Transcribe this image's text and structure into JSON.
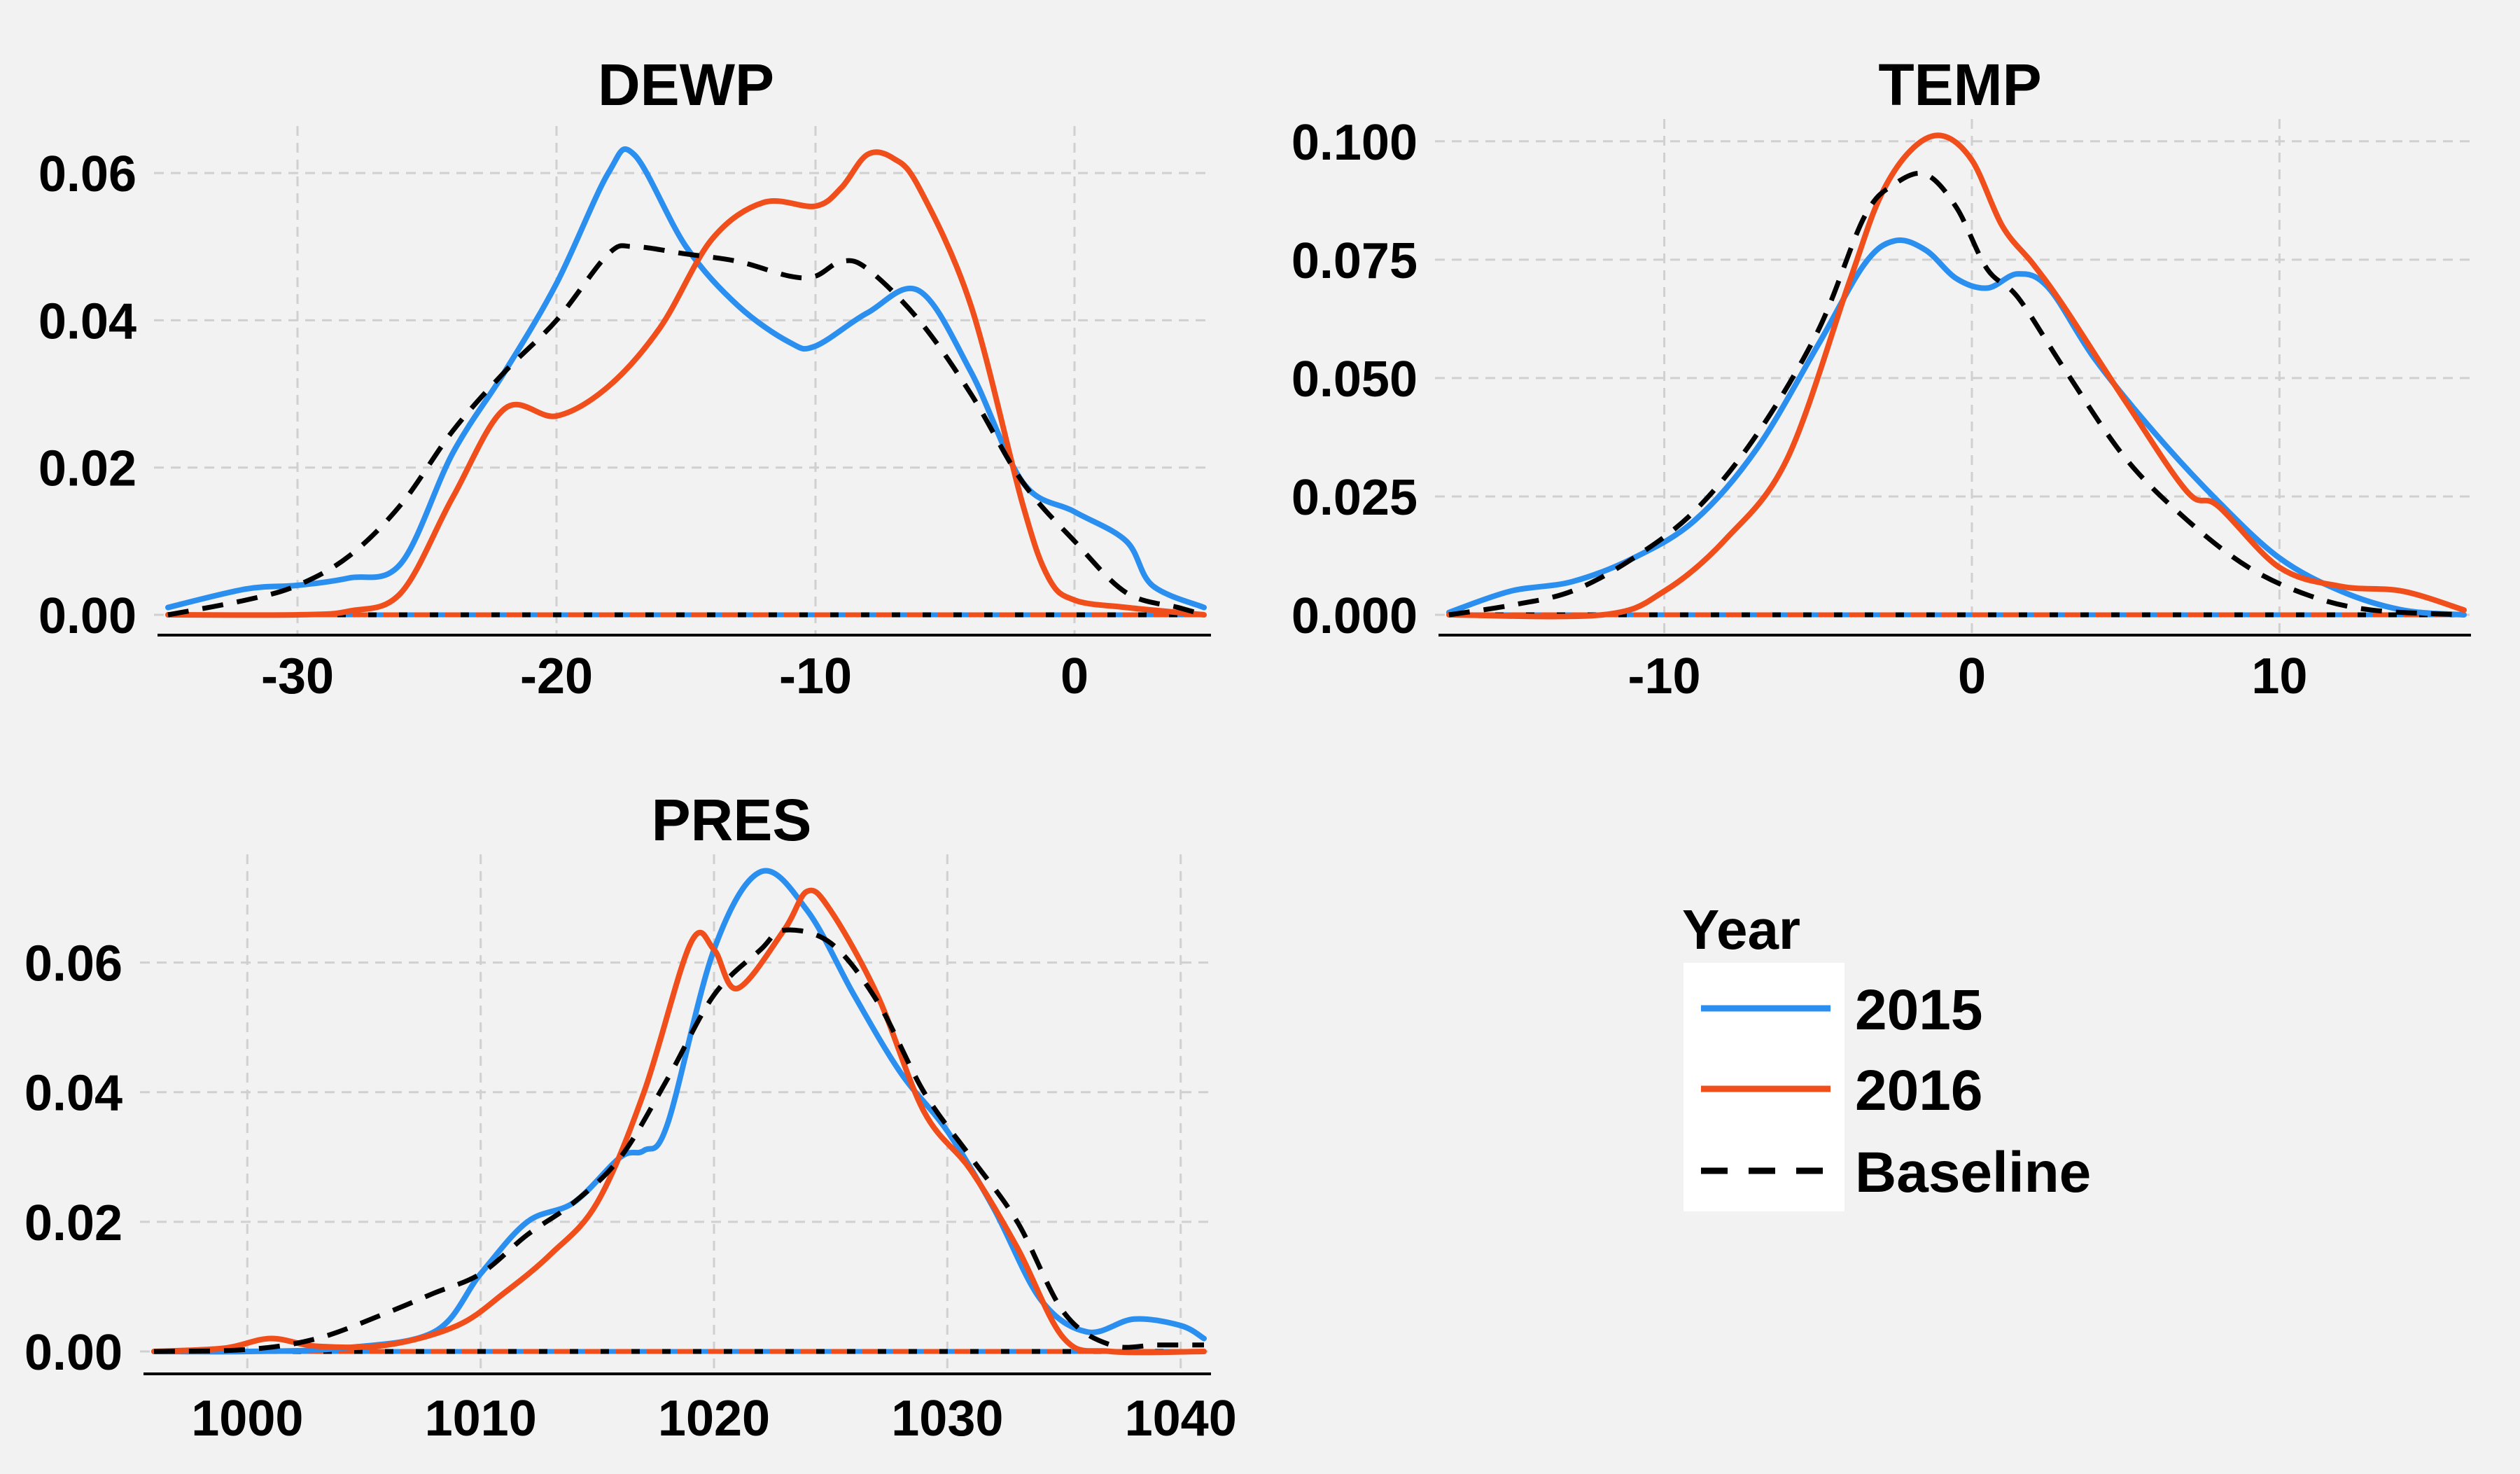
{
  "legend": {
    "title": "Year",
    "items": [
      {
        "label": "2015",
        "color": "#2b8ff0",
        "style": "solid"
      },
      {
        "label": "2016",
        "color": "#f04e1b",
        "style": "solid"
      },
      {
        "label": "Baseline",
        "color": "#000000",
        "style": "dashed"
      }
    ]
  },
  "chart_data": [
    {
      "type": "line",
      "title": "DEWP",
      "xlabel": "",
      "ylabel": "",
      "xlim": [
        -35,
        5
      ],
      "ylim": [
        0,
        0.064
      ],
      "x_ticks": [
        -30,
        -20,
        -10,
        0
      ],
      "x_tick_labels": [
        "-30",
        "-20",
        "-10",
        "0"
      ],
      "y_ticks": [
        0,
        0.02,
        0.04,
        0.06
      ],
      "y_tick_labels": [
        "0.00",
        "0.02",
        "0.04",
        "0.06"
      ],
      "grid": true,
      "series": [
        {
          "name": "2015",
          "color": "#2b8ff0",
          "style": "solid",
          "x": [
            -35,
            -32,
            -30,
            -28,
            -26,
            -24,
            -22,
            -20,
            -18,
            -17,
            -15,
            -13,
            -11,
            -10,
            -8,
            -6,
            -4,
            -2,
            0,
            2,
            3,
            5
          ],
          "y": [
            0.001,
            0.0035,
            0.004,
            0.005,
            0.007,
            0.022,
            0.033,
            0.045,
            0.06,
            0.0625,
            0.05,
            0.042,
            0.037,
            0.0365,
            0.041,
            0.044,
            0.033,
            0.018,
            0.014,
            0.01,
            0.004,
            0.001
          ]
        },
        {
          "name": "2016",
          "color": "#f04e1b",
          "style": "solid",
          "x": [
            -35,
            -30,
            -28,
            -26,
            -24,
            -22,
            -20,
            -18,
            -16,
            -14,
            -12,
            -10,
            -9,
            -8,
            -7,
            -6,
            -4,
            -2,
            -1,
            0,
            2,
            5
          ],
          "y": [
            0,
            0,
            0.0005,
            0.003,
            0.016,
            0.028,
            0.027,
            0.031,
            0.039,
            0.051,
            0.056,
            0.0555,
            0.058,
            0.0625,
            0.062,
            0.058,
            0.042,
            0.015,
            0.005,
            0.002,
            0.001,
            0
          ]
        },
        {
          "name": "Baseline",
          "color": "#000000",
          "style": "dashed",
          "x": [
            -35,
            -32,
            -30,
            -28,
            -26,
            -24,
            -22,
            -20,
            -18,
            -17,
            -15,
            -13,
            -11,
            -10,
            -9,
            -8,
            -6,
            -4,
            -2,
            0,
            2,
            4,
            5
          ],
          "y": [
            0,
            0.002,
            0.004,
            0.008,
            0.015,
            0.025,
            0.033,
            0.04,
            0.049,
            0.05,
            0.049,
            0.048,
            0.046,
            0.046,
            0.048,
            0.047,
            0.04,
            0.03,
            0.018,
            0.01,
            0.003,
            0.001,
            0
          ]
        }
      ]
    },
    {
      "type": "line",
      "title": "TEMP",
      "xlabel": "",
      "ylabel": "",
      "xlim": [
        -17,
        16
      ],
      "ylim": [
        0,
        0.101
      ],
      "x_ticks": [
        -10,
        0,
        10
      ],
      "x_tick_labels": [
        "-10",
        "0",
        "10"
      ],
      "y_ticks": [
        0,
        0.025,
        0.05,
        0.075,
        0.1
      ],
      "y_tick_labels": [
        "0.000",
        "0.025",
        "0.050",
        "0.075",
        "0.100"
      ],
      "grid": true,
      "series": [
        {
          "name": "2015",
          "color": "#2b8ff0",
          "style": "solid",
          "x": [
            -17,
            -15,
            -13,
            -11,
            -9,
            -7,
            -5,
            -3.5,
            -2.5,
            -1.5,
            -0.5,
            0.5,
            1.5,
            2.5,
            4,
            6,
            8,
            10,
            12,
            14,
            16
          ],
          "y": [
            0.0005,
            0.005,
            0.007,
            0.012,
            0.02,
            0.035,
            0.057,
            0.074,
            0.079,
            0.077,
            0.071,
            0.069,
            0.072,
            0.069,
            0.054,
            0.038,
            0.024,
            0.012,
            0.005,
            0.001,
            0
          ]
        },
        {
          "name": "2016",
          "color": "#f04e1b",
          "style": "solid",
          "x": [
            -17,
            -12,
            -10,
            -8,
            -6,
            -4,
            -3,
            -2,
            -1,
            0,
            1,
            2,
            3,
            5,
            7,
            8,
            10,
            12,
            14,
            16
          ],
          "y": [
            0,
            0,
            0.005,
            0.016,
            0.033,
            0.07,
            0.088,
            0.098,
            0.1012,
            0.096,
            0.082,
            0.074,
            0.065,
            0.045,
            0.026,
            0.023,
            0.01,
            0.006,
            0.005,
            0.001
          ]
        },
        {
          "name": "Baseline",
          "color": "#000000",
          "style": "dashed",
          "x": [
            -17,
            -15,
            -13,
            -11,
            -9,
            -7,
            -5,
            -3.5,
            -2.5,
            -1.5,
            -0.5,
            0.5,
            1.5,
            3,
            5,
            7,
            9,
            11,
            13,
            16
          ],
          "y": [
            0,
            0.002,
            0.005,
            0.012,
            0.022,
            0.038,
            0.06,
            0.084,
            0.091,
            0.093,
            0.086,
            0.073,
            0.067,
            0.052,
            0.033,
            0.02,
            0.01,
            0.004,
            0.001,
            0
          ]
        }
      ]
    },
    {
      "type": "line",
      "title": "PRES",
      "xlabel": "",
      "ylabel": "",
      "xlim": [
        996,
        1041
      ],
      "ylim": [
        0,
        0.074
      ],
      "x_ticks": [
        1000,
        1010,
        1020,
        1030,
        1040
      ],
      "x_tick_labels": [
        "1000",
        "1010",
        "1020",
        "1030",
        "1040"
      ],
      "y_ticks": [
        0,
        0.02,
        0.04,
        0.06
      ],
      "y_tick_labels": [
        "0.00",
        "0.02",
        "0.04",
        "0.06"
      ],
      "grid": true,
      "series": [
        {
          "name": "2015",
          "color": "#2b8ff0",
          "style": "solid",
          "x": [
            996,
            1000,
            1004,
            1008,
            1010,
            1012,
            1014,
            1016,
            1017,
            1018,
            1020,
            1022,
            1024,
            1026,
            1028,
            1030,
            1032,
            1034,
            1036,
            1038,
            1040,
            1041
          ],
          "y": [
            0,
            0,
            0.0005,
            0.003,
            0.012,
            0.02,
            0.023,
            0.03,
            0.031,
            0.035,
            0.062,
            0.074,
            0.068,
            0.055,
            0.043,
            0.034,
            0.022,
            0.008,
            0.003,
            0.005,
            0.004,
            0.002
          ]
        },
        {
          "name": "2016",
          "color": "#f04e1b",
          "style": "solid",
          "x": [
            996,
            999,
            1001,
            1003,
            1006,
            1009,
            1011,
            1013,
            1015,
            1017,
            1019,
            1020,
            1021,
            1023,
            1024,
            1025,
            1027,
            1029,
            1031,
            1033,
            1035,
            1037,
            1041
          ],
          "y": [
            0,
            0.0005,
            0.002,
            0.0008,
            0.001,
            0.004,
            0.009,
            0.015,
            0.023,
            0.04,
            0.063,
            0.062,
            0.056,
            0.065,
            0.071,
            0.068,
            0.055,
            0.037,
            0.028,
            0.016,
            0.002,
            0,
            0
          ]
        },
        {
          "name": "Baseline",
          "color": "#000000",
          "style": "dashed",
          "x": [
            996,
            1000,
            1003,
            1006,
            1008,
            1010,
            1012,
            1014,
            1016,
            1018,
            1020,
            1022,
            1023,
            1025,
            1027,
            1029,
            1031,
            1033,
            1035,
            1037,
            1039,
            1041
          ],
          "y": [
            0,
            0.0003,
            0.002,
            0.006,
            0.009,
            0.012,
            0.018,
            0.023,
            0.03,
            0.042,
            0.055,
            0.062,
            0.065,
            0.063,
            0.054,
            0.04,
            0.03,
            0.02,
            0.006,
            0.001,
            0.001,
            0.001
          ]
        }
      ]
    }
  ]
}
